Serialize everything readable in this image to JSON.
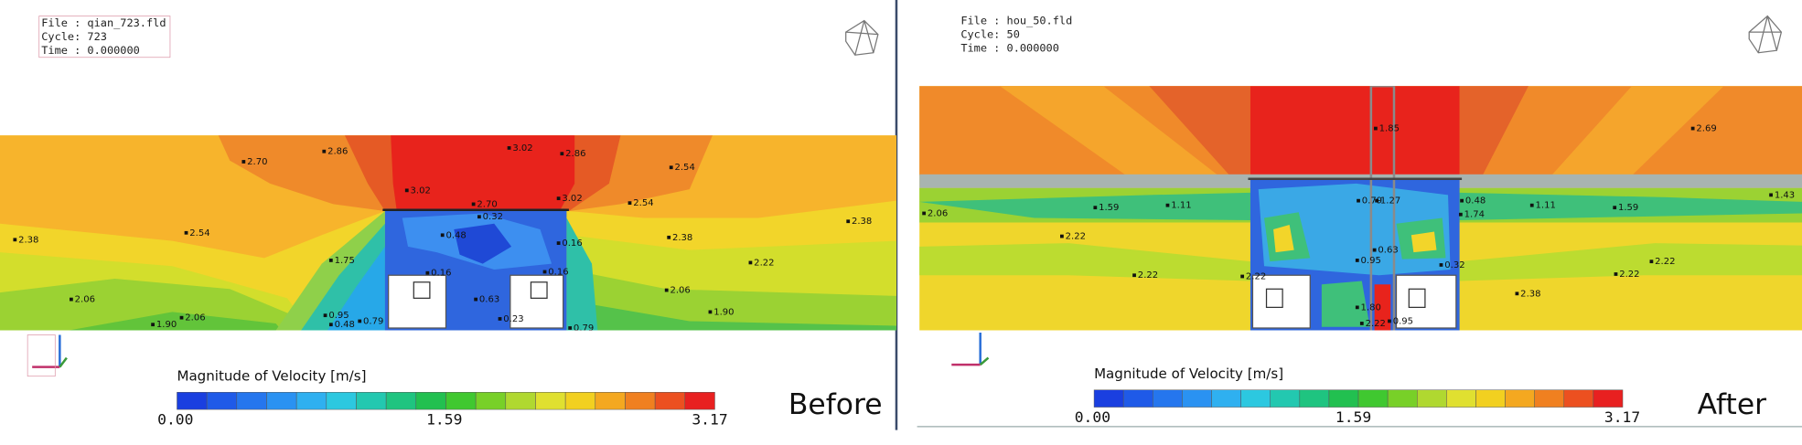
{
  "panels": [
    {
      "file": "File : qian_723.fld",
      "cycle": "Cycle: 723",
      "time": "Time : 0.000000",
      "colorbar": {
        "title": "Magnitude of Velocity [m/s]",
        "ticks": [
          "0.00",
          "1.59",
          "3.17"
        ]
      },
      "caption": "Before",
      "point_labels": [
        "2.70",
        "2.86",
        "3.02",
        "2.86",
        "2.54",
        "3.02",
        "2.70",
        "0.32",
        "3.02",
        "2.54",
        "2.38",
        "2.38",
        "2.54",
        "0.48",
        "0.16",
        "2.38",
        "1.75",
        "2.22",
        "0.16",
        "0.16",
        "2.06",
        "0.63",
        "2.06",
        "1.90",
        "0.95",
        "0.23",
        "2.06",
        "1.90",
        "0.48",
        "0.79",
        "0.79"
      ]
    },
    {
      "file": "File : hou_50.fld",
      "cycle": "Cycle: 50",
      "time": "Time : 0.000000",
      "colorbar": {
        "title": "Magnitude of Velocity [m/s]",
        "ticks": [
          "0.00",
          "1.59",
          "3.17"
        ]
      },
      "caption": "After",
      "point_labels": [
        "1.85",
        "2.69",
        "1.43",
        "2.06",
        "1.59",
        "1.11",
        "0.79",
        "1.27",
        "0.48",
        "1.74",
        "1.11",
        "1.59",
        "2.22",
        "0.63",
        "0.95",
        "0.32",
        "2.22",
        "2.22",
        "2.22",
        "2.22",
        "2.38",
        "1.80",
        "0.95",
        "2.22"
      ]
    }
  ]
}
